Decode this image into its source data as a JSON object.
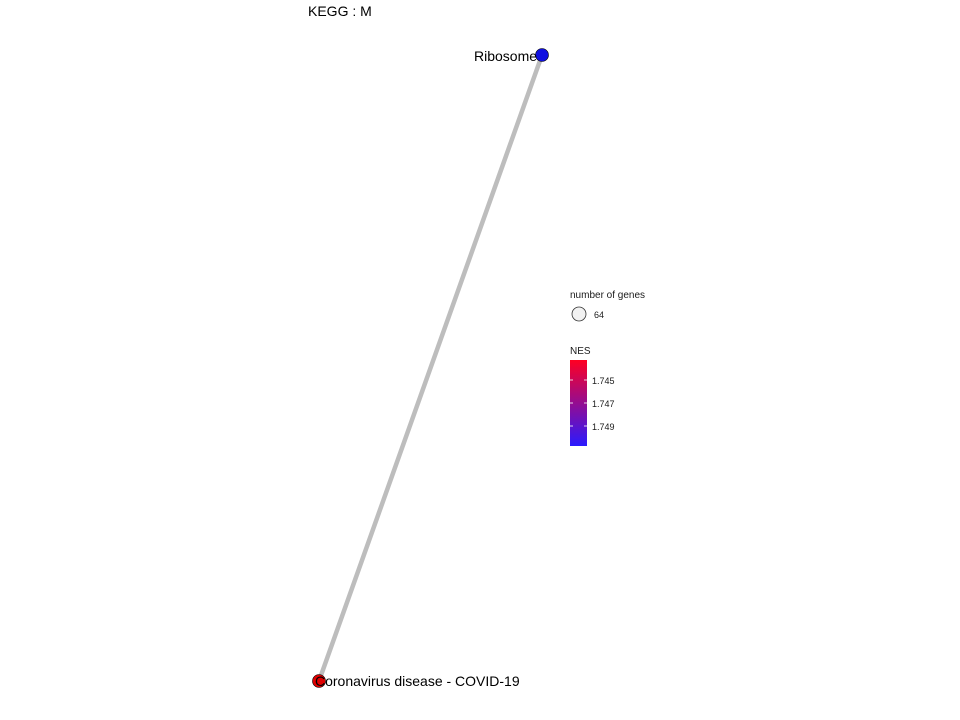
{
  "title": "KEGG : M",
  "network": {
    "nodes": [
      {
        "id": "ribosome",
        "label": "Ribosome",
        "color": "#1010e0"
      },
      {
        "id": "covid",
        "label": "Coronavirus disease - COVID-19",
        "color": "#e00000"
      }
    ],
    "edges": [
      {
        "from": "ribosome",
        "to": "covid",
        "color": "#bdbdbd"
      }
    ]
  },
  "legend": {
    "size_title": "number of genes",
    "size_value": "64",
    "color_title": "NES",
    "color_ticks": [
      "1.745",
      "1.747",
      "1.749"
    ],
    "gradient_top": "#ff0022",
    "gradient_bottom": "#2a1aff"
  }
}
